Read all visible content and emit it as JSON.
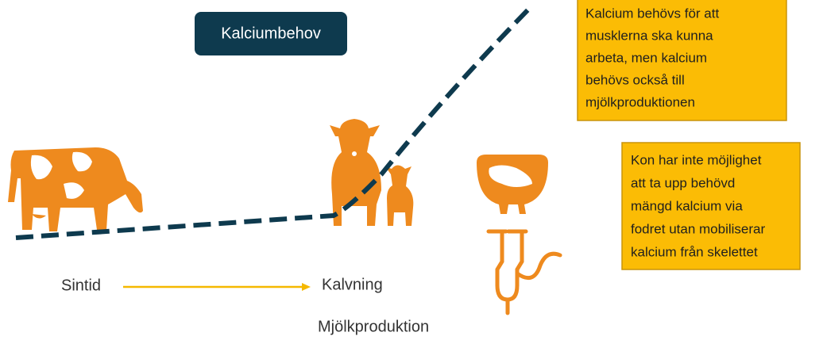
{
  "title": "Kalciumbehov",
  "notes": [
    {
      "lines": [
        "Kalcium behövs för att",
        "musklerna ska kunna",
        "arbeta, men kalcium",
        "behövs också till",
        "mjölkproduktionen"
      ]
    },
    {
      "lines": [
        "Kon har inte möjlighet",
        "att ta upp behövd",
        "mängd kalcium via",
        "fodret utan mobiliserar",
        "kalcium från skelettet"
      ]
    }
  ],
  "timeline": {
    "start": "Sintid",
    "end": "Kalvning",
    "phase": "Mjölkproduktion"
  }
}
